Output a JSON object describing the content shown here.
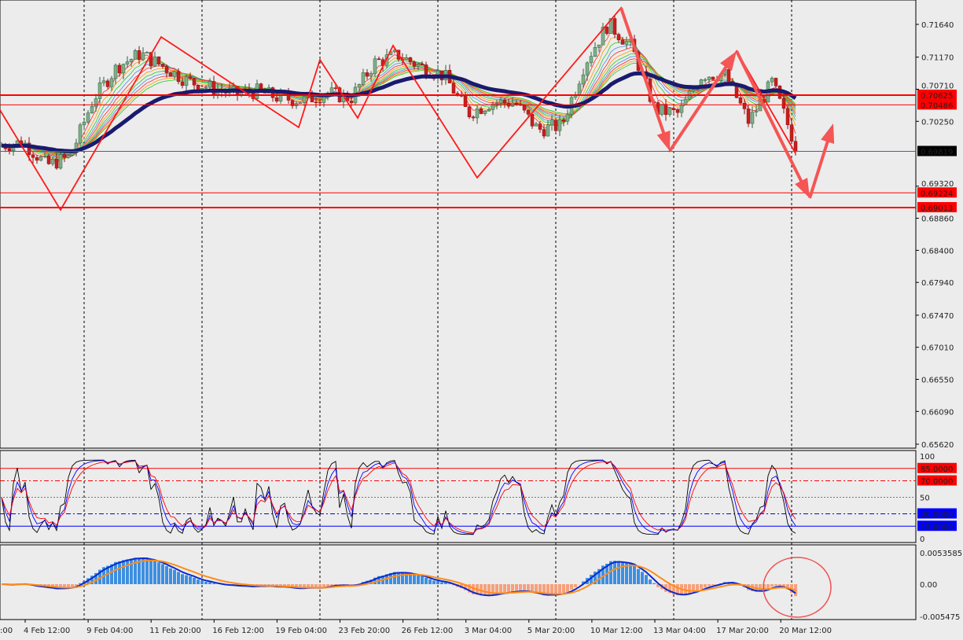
{
  "chart_data": [
    {
      "type": "candlestick",
      "panel": "price",
      "y_ticks": [
        "0.71640",
        "0.71170",
        "0.70710",
        "0.70250",
        "0.69320",
        "0.68860",
        "0.68400",
        "0.67940",
        "0.67470",
        "0.67010",
        "0.66550",
        "0.66090",
        "0.65620"
      ],
      "ylim": [
        0.6562,
        0.719
      ],
      "close_approx": [
        0.699,
        0.6995,
        0.6962,
        0.6974,
        0.7058,
        0.7103,
        0.7122,
        0.7103,
        0.7083,
        0.7073,
        0.7064,
        0.7068,
        0.7058,
        0.7055,
        0.7066,
        0.7058,
        0.7109,
        0.712,
        0.7103,
        0.709,
        0.7036,
        0.7052,
        0.7052,
        0.7013,
        0.7019,
        0.7109,
        0.7165,
        0.7131,
        0.7041,
        0.7036,
        0.7092,
        0.7092,
        0.7024,
        0.7081,
        0.699
      ],
      "levels": [
        {
          "value": "0.70625",
          "color": "#ff0000",
          "style": "thick"
        },
        {
          "value": "0.70486",
          "color": "#ff0000",
          "style": "thin"
        },
        {
          "value": "0.69819",
          "color": "#3b5bdb",
          "style": "thin",
          "current": true
        },
        {
          "value": "0.69224",
          "color": "#ff0000",
          "style": "thin"
        },
        {
          "value": "0.69013",
          "color": "#ff0000",
          "style": "thick"
        }
      ],
      "moving_average_color": "#1a1a6e",
      "ribbon_colors": [
        "#ff2a2a",
        "#ff9900",
        "#22cc22",
        "#4a90e2"
      ]
    },
    {
      "type": "line",
      "panel": "oscillator",
      "ylim": [
        0,
        100
      ],
      "y_ticks": [
        "100",
        "50",
        "0"
      ],
      "levels": [
        {
          "value": "85.0000",
          "color": "#ff0000"
        },
        {
          "value": "70.0000",
          "color": "#ff0000"
        },
        {
          "value": "30.0000",
          "color": "#0000ff"
        },
        {
          "value": "15.0000",
          "color": "#0000ff"
        }
      ],
      "series_colors": [
        "#000000",
        "#0000ff",
        "#ff0000"
      ]
    },
    {
      "type": "bar",
      "panel": "macd",
      "y_ticks": [
        "0.0053585",
        "0.00",
        "-0.005475"
      ],
      "ylim": [
        -0.005475,
        0.0053585
      ],
      "positive_color": "#3d8fe0",
      "negative_color": "#f7a07a",
      "line_colors": [
        "#0a2ad0",
        "#ff8c1a"
      ]
    }
  ],
  "x_labels": [
    "4 Feb 12:00",
    "9 Feb 04:00",
    "11 Feb 20:00",
    "16 Feb 12:00",
    "19 Feb 04:00",
    "23 Feb 20:00",
    "26 Feb 12:00",
    "3 Mar 04:00",
    "5 Mar 20:00",
    "10 Mar 12:00",
    "13 Mar 04:00",
    "17 Mar 20:00",
    "20 Mar 12:00"
  ],
  "x_label_partial": ":00"
}
